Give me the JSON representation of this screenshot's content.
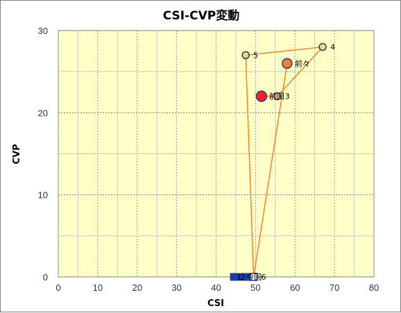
{
  "chart_data": {
    "type": "scatter",
    "title": "CSI-CVP変動",
    "xlabel": "CSI",
    "ylabel": "CVP",
    "xlim": [
      0,
      80
    ],
    "ylim": [
      0,
      30
    ],
    "xticks": [
      0,
      10,
      20,
      30,
      40,
      50,
      60,
      70,
      80
    ],
    "yticks": [
      0,
      10,
      20,
      30
    ],
    "grid": true,
    "colors": {
      "plot_bg": "#ffffc8",
      "line": "#ff7f27",
      "point_yellow": "#ffdc50",
      "point_orange": "#ff7f1e",
      "point_red": "#ff1e1e",
      "point_edge": "#1e32a0",
      "square_blue": "#1e3cb4"
    },
    "series": [
      {
        "points": [
          {
            "label": "前回",
            "x": 51.5,
            "y": 22,
            "marker": "circle-red"
          },
          {
            "label": "3",
            "x": 55.5,
            "y": 22,
            "marker": "circle-yellow"
          },
          {
            "label": "4",
            "x": 67,
            "y": 28,
            "marker": "circle-yellow"
          },
          {
            "label": "5",
            "x": 47.5,
            "y": 27,
            "marker": "circle-yellow"
          },
          {
            "label": "6",
            "x": 49.5,
            "y": 0,
            "marker": "square-white"
          },
          {
            "label": "前々",
            "x": 58,
            "y": 26,
            "marker": "circle-orange"
          }
        ]
      }
    ],
    "bottom_markers": [
      {
        "label": "1",
        "x": 44.5,
        "y": 0
      },
      {
        "label": "2",
        "x": 45.5,
        "y": 0
      },
      {
        "label": "今回",
        "x": 47,
        "y": 0
      },
      {
        "label": "",
        "x": 48.5,
        "y": 0
      }
    ]
  }
}
